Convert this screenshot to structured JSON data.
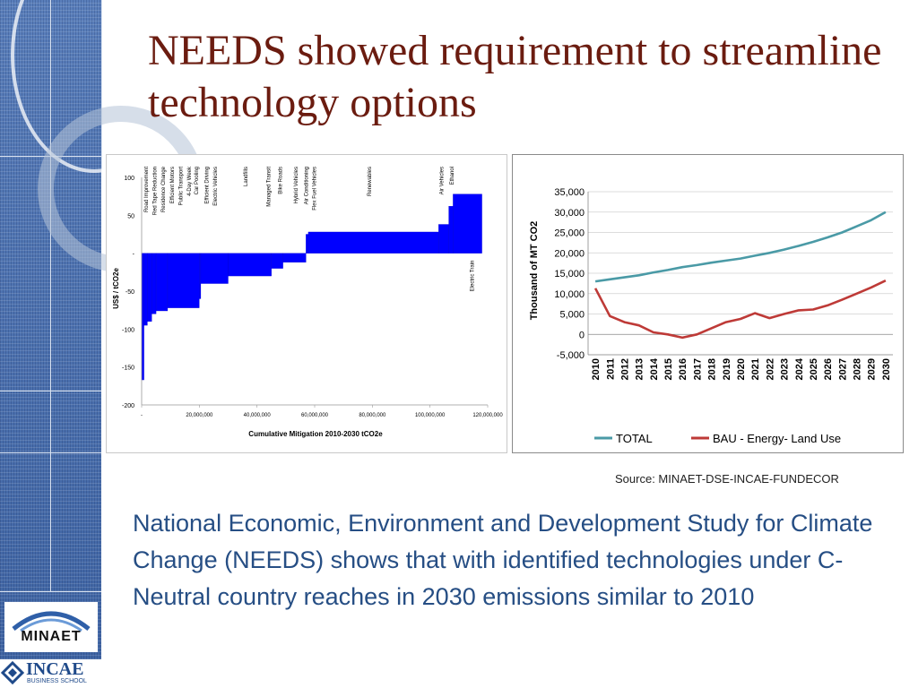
{
  "slide": {
    "title": "NEEDS showed requirement to streamline technology options",
    "source": "Source: MINAET-DSE-INCAE-FUNDECOR",
    "body": "National Economic, Environment and Development Study for Climate Change (NEEDS) shows that with identified technologies under C-Neutral country reaches in 2030 emissions similar to 2010",
    "logos": {
      "minaet": "MINAET",
      "incae": "INCAE",
      "incae_sub": "BUSINESS SCHOOL"
    }
  },
  "colors": {
    "title": "#6b1c10",
    "body": "#264e84",
    "bar": "#0000ff",
    "total": "#4a9aa6",
    "bau": "#be3a37"
  },
  "chart_data": [
    {
      "type": "bar",
      "title": "",
      "xlabel": "Cumulative Mitigation 2010-2030 tCO2e",
      "ylabel": "US$ / tCO2e",
      "xlim": [
        0,
        120000000
      ],
      "ylim": [
        -200,
        100
      ],
      "y_ticks": [
        100,
        50,
        0,
        -50,
        -100,
        -150,
        -200
      ],
      "y_tick_labels": [
        "100",
        "50",
        "-",
        "-50",
        "-100",
        "-150",
        "-200"
      ],
      "x_ticks": [
        0,
        20000000,
        40000000,
        60000000,
        80000000,
        100000000,
        120000000
      ],
      "x_tick_labels": [
        "-",
        "20,000,000",
        "40,000,000",
        "60,000,000",
        "80,000,000",
        "100,000,000",
        "120,000,000"
      ],
      "bars": [
        {
          "x0": 0,
          "x1": 800000,
          "y": -167
        },
        {
          "x0": 800000,
          "x1": 2000000,
          "y": -95
        },
        {
          "x0": 2000000,
          "x1": 3500000,
          "y": -90
        },
        {
          "x0": 3500000,
          "x1": 5000000,
          "y": -80
        },
        {
          "x0": 5000000,
          "x1": 9000000,
          "y": -76
        },
        {
          "x0": 9000000,
          "x1": 20000000,
          "y": -72
        },
        {
          "x0": 20000000,
          "x1": 20500000,
          "y": -60
        },
        {
          "x0": 20500000,
          "x1": 30000000,
          "y": -40
        },
        {
          "x0": 30000000,
          "x1": 45000000,
          "y": -30
        },
        {
          "x0": 45000000,
          "x1": 49000000,
          "y": -20
        },
        {
          "x0": 49000000,
          "x1": 57000000,
          "y": -12
        },
        {
          "x0": 57000000,
          "x1": 57800000,
          "y": 25
        },
        {
          "x0": 57800000,
          "x1": 103000000,
          "y": 28
        },
        {
          "x0": 103000000,
          "x1": 106500000,
          "y": 38
        },
        {
          "x0": 106500000,
          "x1": 108000000,
          "y": 62
        },
        {
          "x0": 108000000,
          "x1": 118000000,
          "y": 78
        }
      ],
      "annotations": [
        {
          "text": "Road Improvement",
          "x": 1500000,
          "y": 100
        },
        {
          "text": "Red Tape Reduction",
          "x": 4500000,
          "y": 100
        },
        {
          "text": "Residence Change",
          "x": 7500000,
          "y": 100
        },
        {
          "text": "Efficient Motors",
          "x": 10500000,
          "y": 100
        },
        {
          "text": "Public Transport",
          "x": 13500000,
          "y": 100
        },
        {
          "text": "4-Day Week",
          "x": 16500000,
          "y": 100
        },
        {
          "text": "Car Pooling",
          "x": 19000000,
          "y": 100
        },
        {
          "text": "Efficient Driving",
          "x": 22500000,
          "y": 100
        },
        {
          "text": "Electric Vehicles",
          "x": 25500000,
          "y": 100
        },
        {
          "text": "Landfills",
          "x": 36000000,
          "y": 100
        },
        {
          "text": "Managed Transit",
          "x": 44000000,
          "y": 100
        },
        {
          "text": "Bike Roads",
          "x": 48000000,
          "y": 100
        },
        {
          "text": "Hybrid Vehicles",
          "x": 53500000,
          "y": 100
        },
        {
          "text": "Air Conditioning",
          "x": 57000000,
          "y": 100
        },
        {
          "text": "Flex Fuel Vehicles",
          "x": 59800000,
          "y": 100
        },
        {
          "text": "Renewables",
          "x": 79000000,
          "y": 100
        },
        {
          "text": "Air Vehicles",
          "x": 104000000,
          "y": 100
        },
        {
          "text": "Ethanol",
          "x": 107500000,
          "y": 100
        },
        {
          "text": "Electric Train",
          "x": 114500000,
          "y": 0
        }
      ]
    },
    {
      "type": "line",
      "title": "",
      "xlabel": "",
      "ylabel": "Thousand of MT CO2",
      "ylim": [
        -5000,
        35000
      ],
      "y_ticks": [
        35000,
        30000,
        25000,
        20000,
        15000,
        10000,
        5000,
        0,
        -5000
      ],
      "y_tick_labels": [
        "35,000",
        "30,000",
        "25,000",
        "20,000",
        "15,000",
        "10,000",
        "5,000",
        "0",
        "-5,000"
      ],
      "x": [
        "2010",
        "2011",
        "2012",
        "2013",
        "2014",
        "2015",
        "2016",
        "2017",
        "2018",
        "2019",
        "2020",
        "2021",
        "2022",
        "2023",
        "2024",
        "2025",
        "2026",
        "2027",
        "2028",
        "2029",
        "2030"
      ],
      "grid": true,
      "legend": "bottom",
      "series": [
        {
          "name": "TOTAL",
          "color": "#4a9aa6",
          "values": [
            13000,
            13500,
            14000,
            14500,
            15200,
            15800,
            16500,
            17000,
            17600,
            18100,
            18600,
            19300,
            20000,
            20800,
            21700,
            22700,
            23800,
            25000,
            26500,
            28000,
            30000
          ]
        },
        {
          "name": "BAU - Energy- Land Use",
          "color": "#be3a37",
          "values": [
            11300,
            4500,
            3000,
            2200,
            500,
            0,
            -800,
            0,
            1500,
            3000,
            3800,
            5200,
            4000,
            5000,
            5900,
            6100,
            7100,
            8500,
            10000,
            11500,
            13200
          ]
        }
      ]
    }
  ]
}
